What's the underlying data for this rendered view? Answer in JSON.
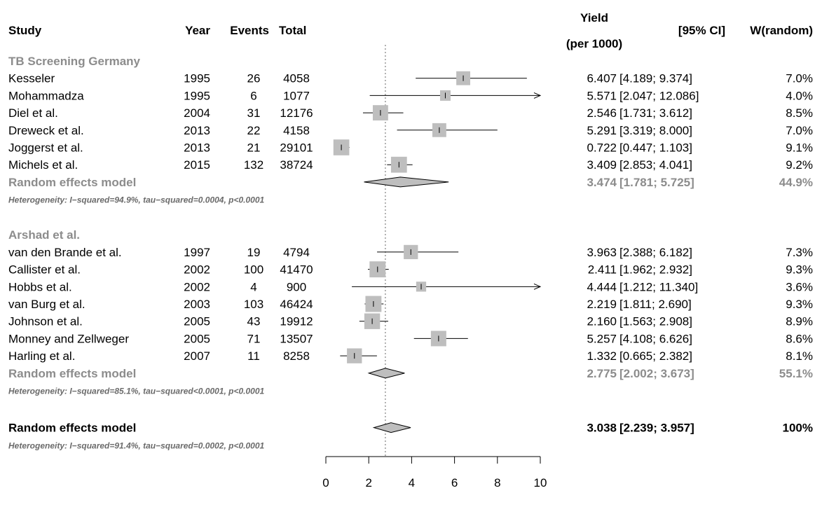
{
  "headers": {
    "study": "Study",
    "year": "Year",
    "events": "Events",
    "total": "Total",
    "yield_line1": "Yield",
    "yield_line2": "(per 1000)",
    "ci": "[95% CI]",
    "weight": "W(random)"
  },
  "colors": {
    "text": "#000000",
    "subgroup_gray": "#8c8c8c",
    "square_fill": "#bebebe",
    "diamond_fill": "#bebebe",
    "ref_line": "#666666"
  },
  "chart_data": {
    "type": "forest",
    "x_axis": {
      "ticks": [
        0,
        2,
        4,
        6,
        8,
        10
      ],
      "lim": [
        0,
        10
      ]
    },
    "reference_line": 2.775,
    "subgroups": [
      {
        "name": "TB Screening Germany",
        "studies": [
          {
            "study": "Kesseler",
            "year": "1995",
            "events": "26",
            "total": "4058",
            "yield": "6.407",
            "ci_low": "4.189",
            "ci_high": "9.374",
            "weight": "7.0%"
          },
          {
            "study": "Mohammadza",
            "year": "1995",
            "events": "6",
            "total": "1077",
            "yield": "5.571",
            "ci_low": "2.047",
            "ci_high": "12.086",
            "weight": "4.0%"
          },
          {
            "study": "Diel et al.",
            "year": "2004",
            "events": "31",
            "total": "12176",
            "yield": "2.546",
            "ci_low": "1.731",
            "ci_high": "3.612",
            "weight": "8.5%"
          },
          {
            "study": "Dreweck et al.",
            "year": "2013",
            "events": "22",
            "total": "4158",
            "yield": "5.291",
            "ci_low": "3.319",
            "ci_high": "8.000",
            "weight": "7.0%"
          },
          {
            "study": "Joggerst et al.",
            "year": "2013",
            "events": "21",
            "total": "29101",
            "yield": "0.722",
            "ci_low": "0.447",
            "ci_high": "1.103",
            "weight": "9.1%"
          },
          {
            "study": "Michels et al.",
            "year": "2015",
            "events": "132",
            "total": "38724",
            "yield": "3.409",
            "ci_low": "2.853",
            "ci_high": "4.041",
            "weight": "9.2%"
          }
        ],
        "pooled": {
          "label": "Random effects model",
          "yield": "3.474",
          "ci_low": "1.781",
          "ci_high": "5.725",
          "weight": "44.9%"
        },
        "heterogeneity": "Heterogeneity: I−squared=94.9%, tau−squared=0.0004, p<0.0001"
      },
      {
        "name": "Arshad et al.",
        "studies": [
          {
            "study": "van den Brande et al.",
            "year": "1997",
            "events": "19",
            "total": "4794",
            "yield": "3.963",
            "ci_low": "2.388",
            "ci_high": "6.182",
            "weight": "7.3%"
          },
          {
            "study": "Callister et al.",
            "year": "2002",
            "events": "100",
            "total": "41470",
            "yield": "2.411",
            "ci_low": "1.962",
            "ci_high": "2.932",
            "weight": "9.3%"
          },
          {
            "study": "Hobbs et al.",
            "year": "2002",
            "events": "4",
            "total": "900",
            "yield": "4.444",
            "ci_low": "1.212",
            "ci_high": "11.340",
            "weight": "3.6%"
          },
          {
            "study": "van Burg et al.",
            "year": "2003",
            "events": "103",
            "total": "46424",
            "yield": "2.219",
            "ci_low": "1.811",
            "ci_high": "2.690",
            "weight": "9.3%"
          },
          {
            "study": "Johnson et al.",
            "year": "2005",
            "events": "43",
            "total": "19912",
            "yield": "2.160",
            "ci_low": "1.563",
            "ci_high": "2.908",
            "weight": "8.9%"
          },
          {
            "study": "Monney and Zellweger",
            "year": "2005",
            "events": "71",
            "total": "13507",
            "yield": "5.257",
            "ci_low": "4.108",
            "ci_high": "6.626",
            "weight": "8.6%"
          },
          {
            "study": "Harling et al.",
            "year": "2007",
            "events": "11",
            "total": "8258",
            "yield": "1.332",
            "ci_low": "0.665",
            "ci_high": "2.382",
            "weight": "8.1%"
          }
        ],
        "pooled": {
          "label": "Random effects model",
          "yield": "2.775",
          "ci_low": "2.002",
          "ci_high": "3.673",
          "weight": "55.1%"
        },
        "heterogeneity": "Heterogeneity: I−squared=85.1%, tau−squared<0.0001, p<0.0001"
      }
    ],
    "overall": {
      "label": "Random effects model",
      "yield": "3.038",
      "ci_low": "2.239",
      "ci_high": "3.957",
      "weight": "100%",
      "heterogeneity": "Heterogeneity: I−squared=91.4%, tau−squared=0.0002, p<0.0001"
    }
  }
}
